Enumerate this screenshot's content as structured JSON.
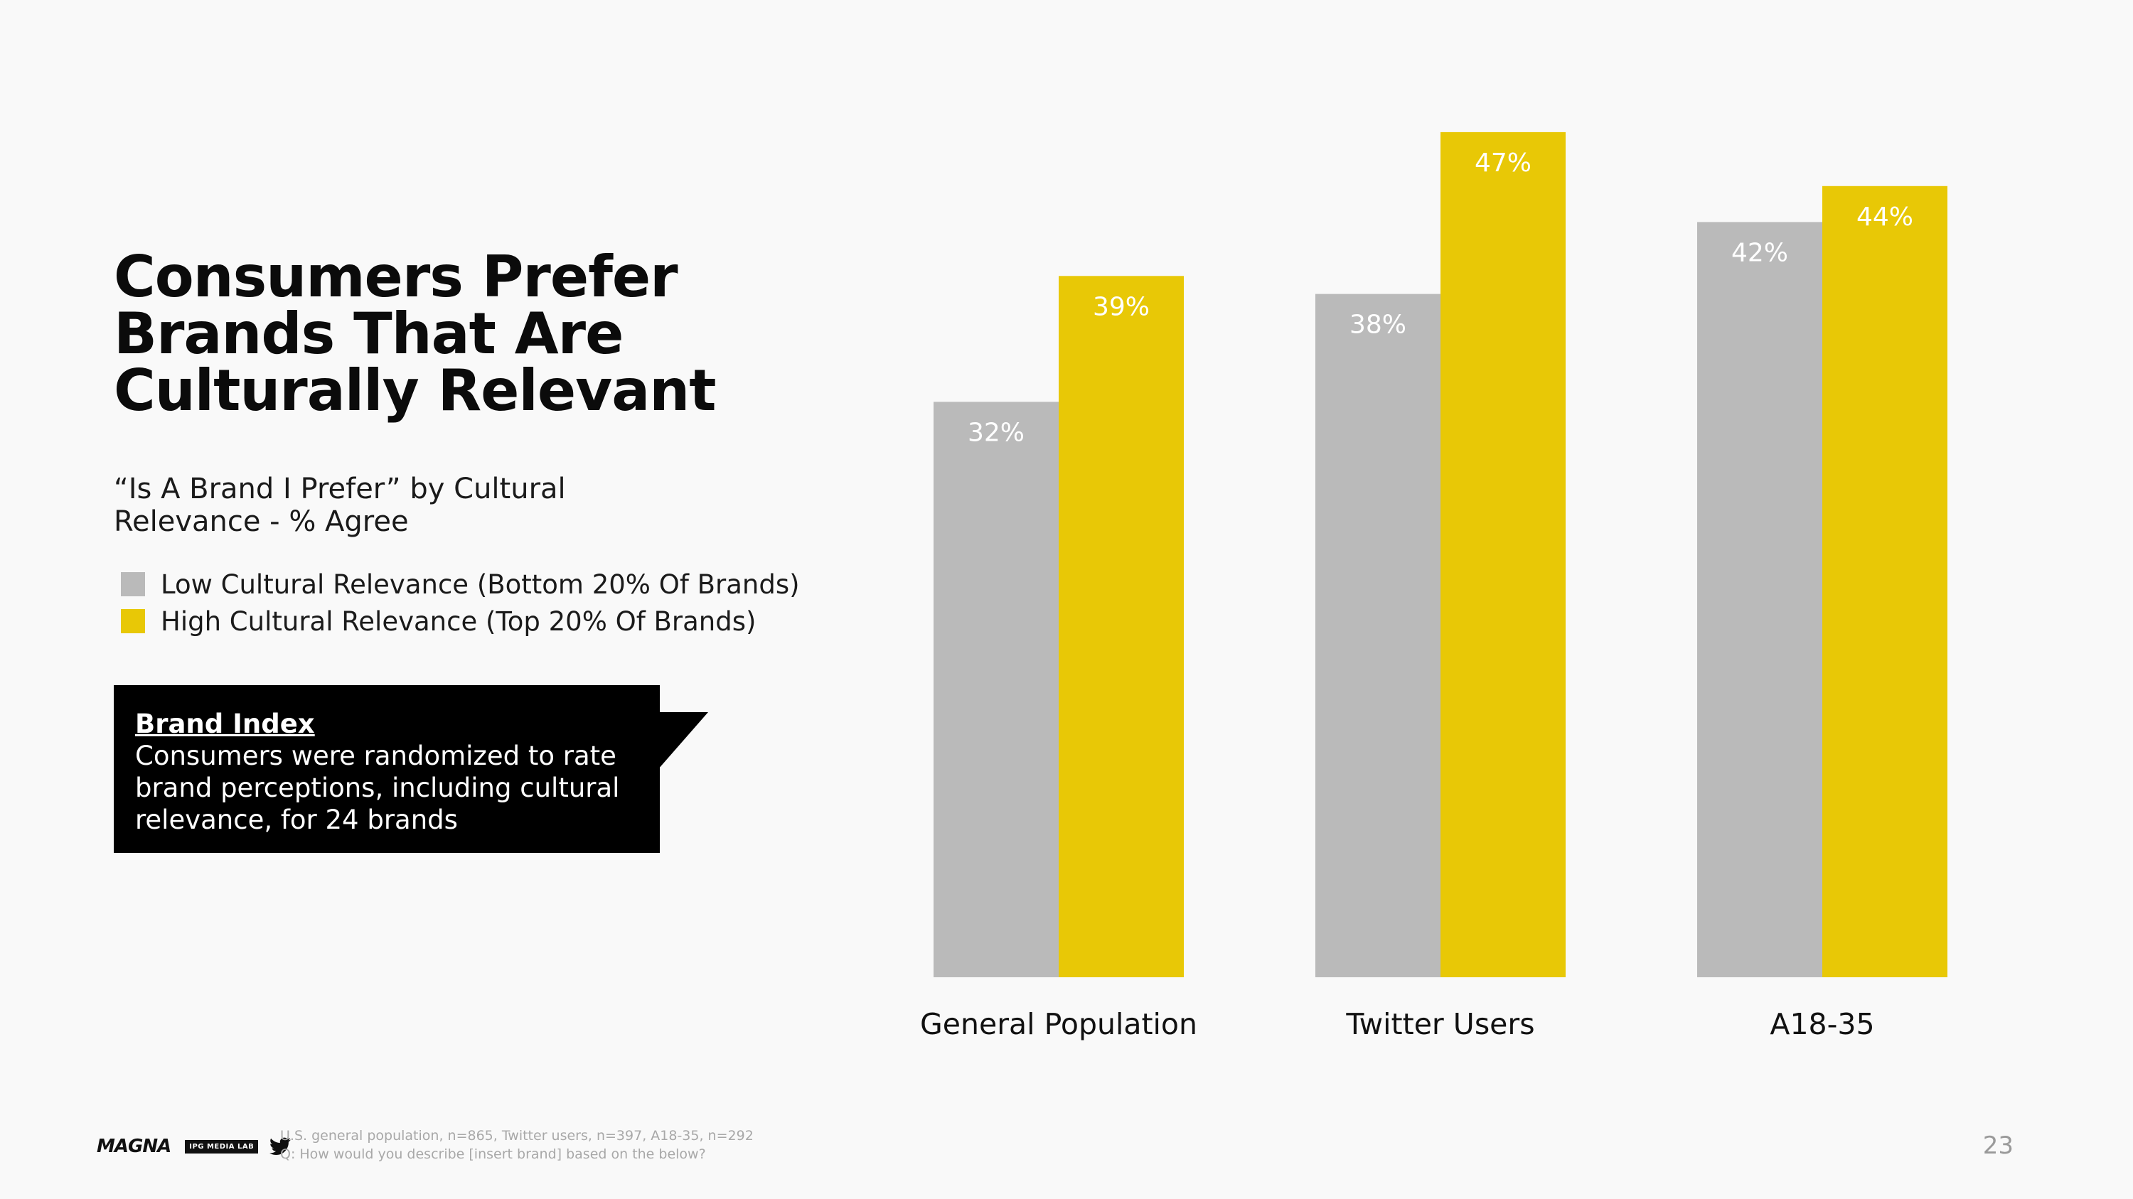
{
  "slide": {
    "title_lines": [
      "Consumers Prefer",
      "Brands That Are",
      "Culturally Relevant"
    ],
    "subtitle_lines": [
      "“Is A Brand I Prefer” by Cultural",
      "Relevance - % Agree"
    ],
    "callout": {
      "heading": "Brand Index",
      "lines": [
        "Consumers were randomized to rate",
        "brand perceptions, including cultural",
        "relevance, for 24 brands"
      ]
    },
    "footnote_lines": [
      "U.S. general population, n=865, Twitter users, n=397, A18-35, n=292",
      "Q: How would you describe [insert brand] based on the below?"
    ],
    "page_number": "23",
    "logos": {
      "magna": "MAGNA",
      "ipg": "IPG MEDIA LAB",
      "twitter_icon": "twitter-bird-icon"
    }
  },
  "colors": {
    "low": "#bababa",
    "high": "#e8c806",
    "callout_bg": "#000000",
    "background": "#f9f9f9"
  },
  "chart_data": {
    "type": "bar",
    "categories": [
      "General Population",
      "Twitter Users",
      "A18-35"
    ],
    "series": [
      {
        "name": "Low Cultural Relevance (Bottom 20% Of Brands)",
        "values": [
          32,
          38,
          42
        ],
        "labels": [
          "32%",
          "38%",
          "42%"
        ]
      },
      {
        "name": "High Cultural Relevance (Top 20% Of Brands)",
        "values": [
          39,
          47,
          44
        ],
        "labels": [
          "39%",
          "47%",
          "44%"
        ]
      }
    ],
    "title": "",
    "xlabel": "",
    "ylabel": "",
    "ylim": [
      0,
      50
    ],
    "grid": false,
    "legend": "left"
  }
}
